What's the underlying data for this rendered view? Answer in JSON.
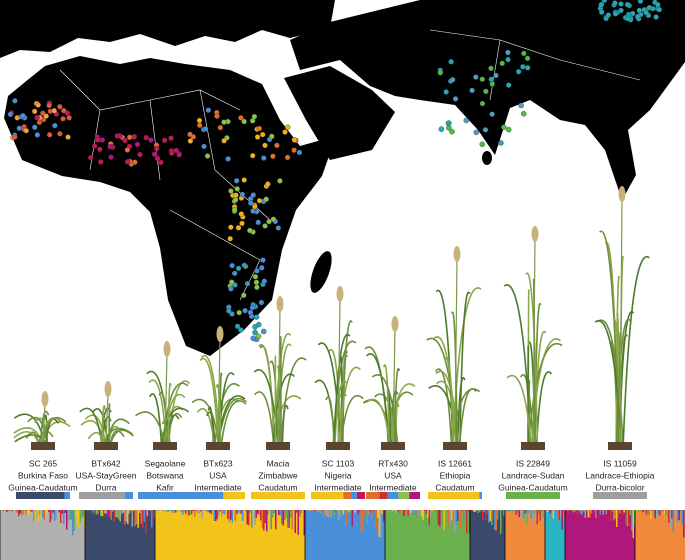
{
  "accessions": [
    {
      "name": "SC 265",
      "origin": "Burkina Faso",
      "race": "Guinea-Caudatum"
    },
    {
      "name": "BTx642",
      "origin": "USA-StayGreen",
      "race": "Durra"
    },
    {
      "name": "Segaolane",
      "origin": "Botswana",
      "race": "Kafir"
    },
    {
      "name": "BTx623",
      "origin": "USA",
      "race": "Intermediate"
    },
    {
      "name": "Macia",
      "origin": "Zimbabwe",
      "race": "Caudatum"
    },
    {
      "name": "SC 1103",
      "origin": "Nigeria",
      "race": "Intermediate"
    },
    {
      "name": "RTx430",
      "origin": "USA",
      "race": "Intermediate"
    },
    {
      "name": "IS 12661",
      "origin": "Ethiopia",
      "race": "Caudatum"
    },
    {
      "name": "IS 22849",
      "origin": "Landrace-Sudan",
      "race": "Guinea-Caudatum"
    },
    {
      "name": "IS 11059",
      "origin": "Landrace-Ethiopia",
      "race": "Durra-bicolor"
    }
  ]
}
